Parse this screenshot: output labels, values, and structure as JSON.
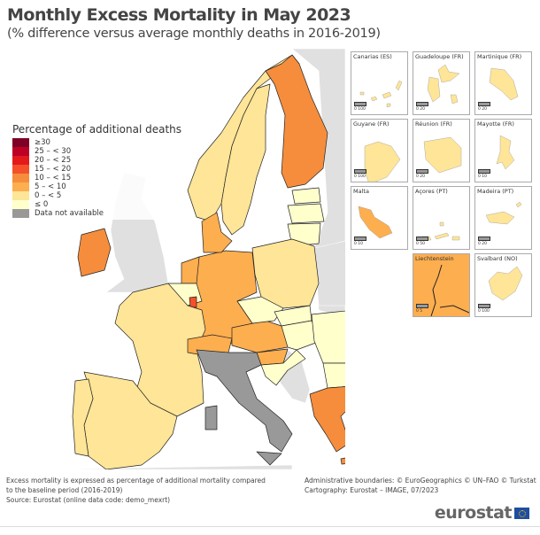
{
  "header": {
    "title": "Monthly Excess Mortality in May 2023",
    "subtitle": "(% difference versus average monthly deaths in 2016-2019)"
  },
  "legend": {
    "title": "Percentage of additional deaths",
    "classes": [
      {
        "label": "≥30",
        "color": "#7f0026"
      },
      {
        "label": "25 – < 30",
        "color": "#bd0026"
      },
      {
        "label": "20 – < 25",
        "color": "#e31a1c"
      },
      {
        "label": "15 – < 20",
        "color": "#f4502a"
      },
      {
        "label": "10 – < 15",
        "color": "#f68d3c"
      },
      {
        "label": "5 – < 10",
        "color": "#fdae4f"
      },
      {
        "label": "0 – < 5",
        "color": "#fee597"
      },
      {
        "label": "≤ 0",
        "color": "#ffffcc"
      },
      {
        "label": "Data not available",
        "color": "#999999"
      }
    ]
  },
  "colors": {
    "sea": "#ffffff",
    "non_covered_land": "#e0e0e0",
    "border": "#222222"
  },
  "region_classes": {
    "NO": 6,
    "SE": 6,
    "FI": 4,
    "EE": 7,
    "LV": 7,
    "LT": 7,
    "PL": 6,
    "DE": 5,
    "DK": 5,
    "NL": 5,
    "BE": 7,
    "LU": 3,
    "FR": 6,
    "ES": 6,
    "PT": 6,
    "IE": 4,
    "CH": 5,
    "AT": 5,
    "SI": 5,
    "CZ": 7,
    "SK": 7,
    "HU": 7,
    "HR": 7,
    "RO": 7,
    "BG": 7,
    "EL": 4,
    "IT": 8,
    "CY": 6
  },
  "insets": [
    {
      "label": "Canarias (ES)",
      "scale": "0   100",
      "class": 6
    },
    {
      "label": "Guadeloupe (FR)",
      "scale": "0   20",
      "class": 6
    },
    {
      "label": "Martinique (FR)",
      "scale": "0   20",
      "class": 6
    },
    {
      "label": "Guyane (FR)",
      "scale": "0   100",
      "class": 6
    },
    {
      "label": "Réunion (FR)",
      "scale": "0   20",
      "class": 6
    },
    {
      "label": "Mayotte (FR)",
      "scale": "0   10",
      "class": 6
    },
    {
      "label": "Malta",
      "scale": "0   10",
      "class": 5
    },
    {
      "label": "Açores (PT)",
      "scale": "0   50",
      "class": 6
    },
    {
      "label": "Madeira (PT)",
      "scale": "0   20",
      "class": 6
    },
    {
      "label": "Liechtenstein",
      "scale": "0   5",
      "class": 5
    },
    {
      "label": "Svalbard (NO)",
      "scale": "0   100",
      "class": 6
    }
  ],
  "footer": {
    "note_line1": "Excess mortality is expressed as percentage of additional mortality compared",
    "note_line2": "to the baseline period (2016-2019)",
    "source": "Source: Eurostat (online data code: demo_mexrt)",
    "boundaries": "Administrative boundaries: © EuroGeographics © UN–FAO © Turkstat",
    "cartography": "Cartography: Eurostat – IMAGE, 07/2023",
    "logo": "eurostat"
  }
}
